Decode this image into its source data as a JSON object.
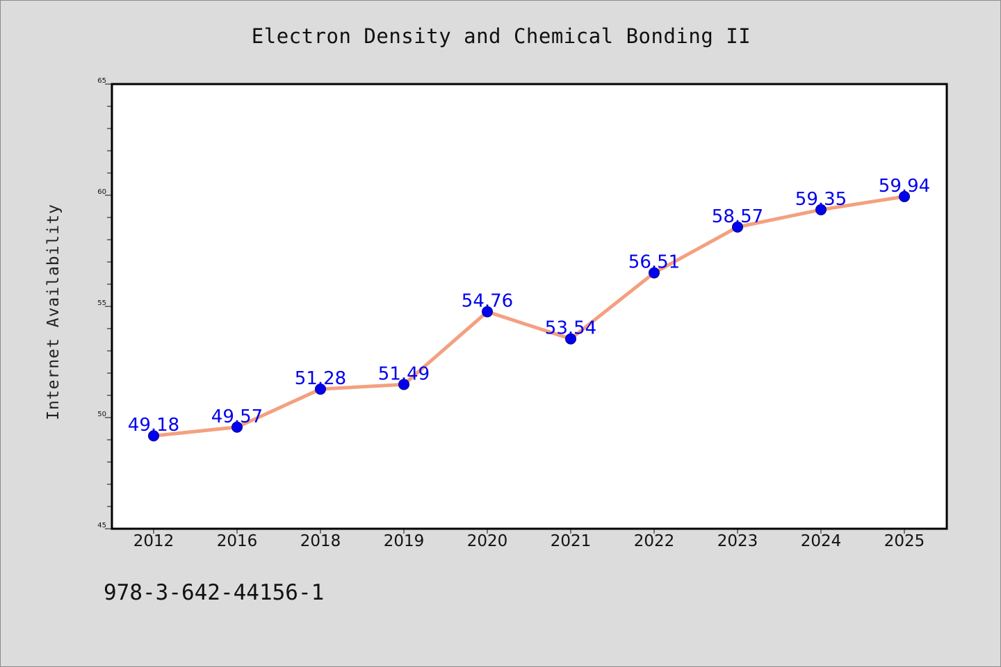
{
  "chart_data": {
    "type": "line",
    "title": "Electron Density and Chemical Bonding II",
    "xlabel": "",
    "ylabel": "Internet Availability",
    "categories": [
      "2012",
      "2016",
      "2018",
      "2019",
      "2020",
      "2021",
      "2022",
      "2023",
      "2024",
      "2025"
    ],
    "series": [
      {
        "values": [
          49.18,
          49.57,
          51.28,
          51.49,
          54.76,
          53.54,
          56.51,
          58.57,
          59.35,
          59.94
        ]
      }
    ],
    "data_labels": [
      "49.18",
      "49.57",
      "51.28",
      "51.49",
      "54.76",
      "53.54",
      "56.51",
      "58.57",
      "59.35",
      "59.94"
    ],
    "ylim": [
      45,
      65
    ],
    "yticks": [
      "45",
      "50",
      "55",
      "60",
      "65"
    ],
    "grid": false,
    "legend": "none",
    "colors": {
      "line": "#f4a080",
      "marker": "#0000ee",
      "data_label": "#0000ee",
      "background": "#dcdcdc",
      "plot_area": "#ffffff"
    }
  },
  "footer": {
    "code": "978-3-642-44156-1"
  }
}
